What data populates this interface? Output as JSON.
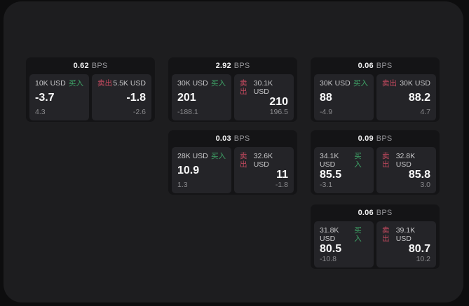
{
  "labels": {
    "bps_unit": "BPS",
    "buy_tag": "买入",
    "sell_tag": "卖出"
  },
  "colors": {
    "buy_green": "#3ea266",
    "sell_red": "#c44a5f",
    "panel_bg": "#1d1d1f",
    "card_bg": "#141416",
    "subpanel_bg": "#242428"
  },
  "cards": [
    {
      "bps": "0.62",
      "buy": {
        "amount": "10K USD",
        "value": "-3.7",
        "delta": "4.3"
      },
      "sell": {
        "amount": "5.5K USD",
        "value": "-1.8",
        "delta": "-2.6"
      }
    },
    {
      "bps": "2.92",
      "buy": {
        "amount": "30K USD",
        "value": "201",
        "delta": "-188.1"
      },
      "sell": {
        "amount": "30.1K USD",
        "value": "210",
        "delta": "196.5"
      }
    },
    {
      "bps": "0.06",
      "buy": {
        "amount": "30K USD",
        "value": "88",
        "delta": "-4.9"
      },
      "sell": {
        "amount": "30K USD",
        "value": "88.2",
        "delta": "4.7"
      }
    },
    {
      "bps": "0.03",
      "buy": {
        "amount": "28K USD",
        "value": "10.9",
        "delta": "1.3"
      },
      "sell": {
        "amount": "32.6K USD",
        "value": "11",
        "delta": "-1.8"
      }
    },
    {
      "bps": "0.09",
      "buy": {
        "amount": "34.1K USD",
        "value": "85.5",
        "delta": "-3.1"
      },
      "sell": {
        "amount": "32.8K USD",
        "value": "85.8",
        "delta": "3.0"
      }
    },
    {
      "bps": "0.06",
      "buy": {
        "amount": "31.8K USD",
        "value": "80.5",
        "delta": "-10.8"
      },
      "sell": {
        "amount": "39.1K USD",
        "value": "80.7",
        "delta": "10.2"
      }
    }
  ]
}
